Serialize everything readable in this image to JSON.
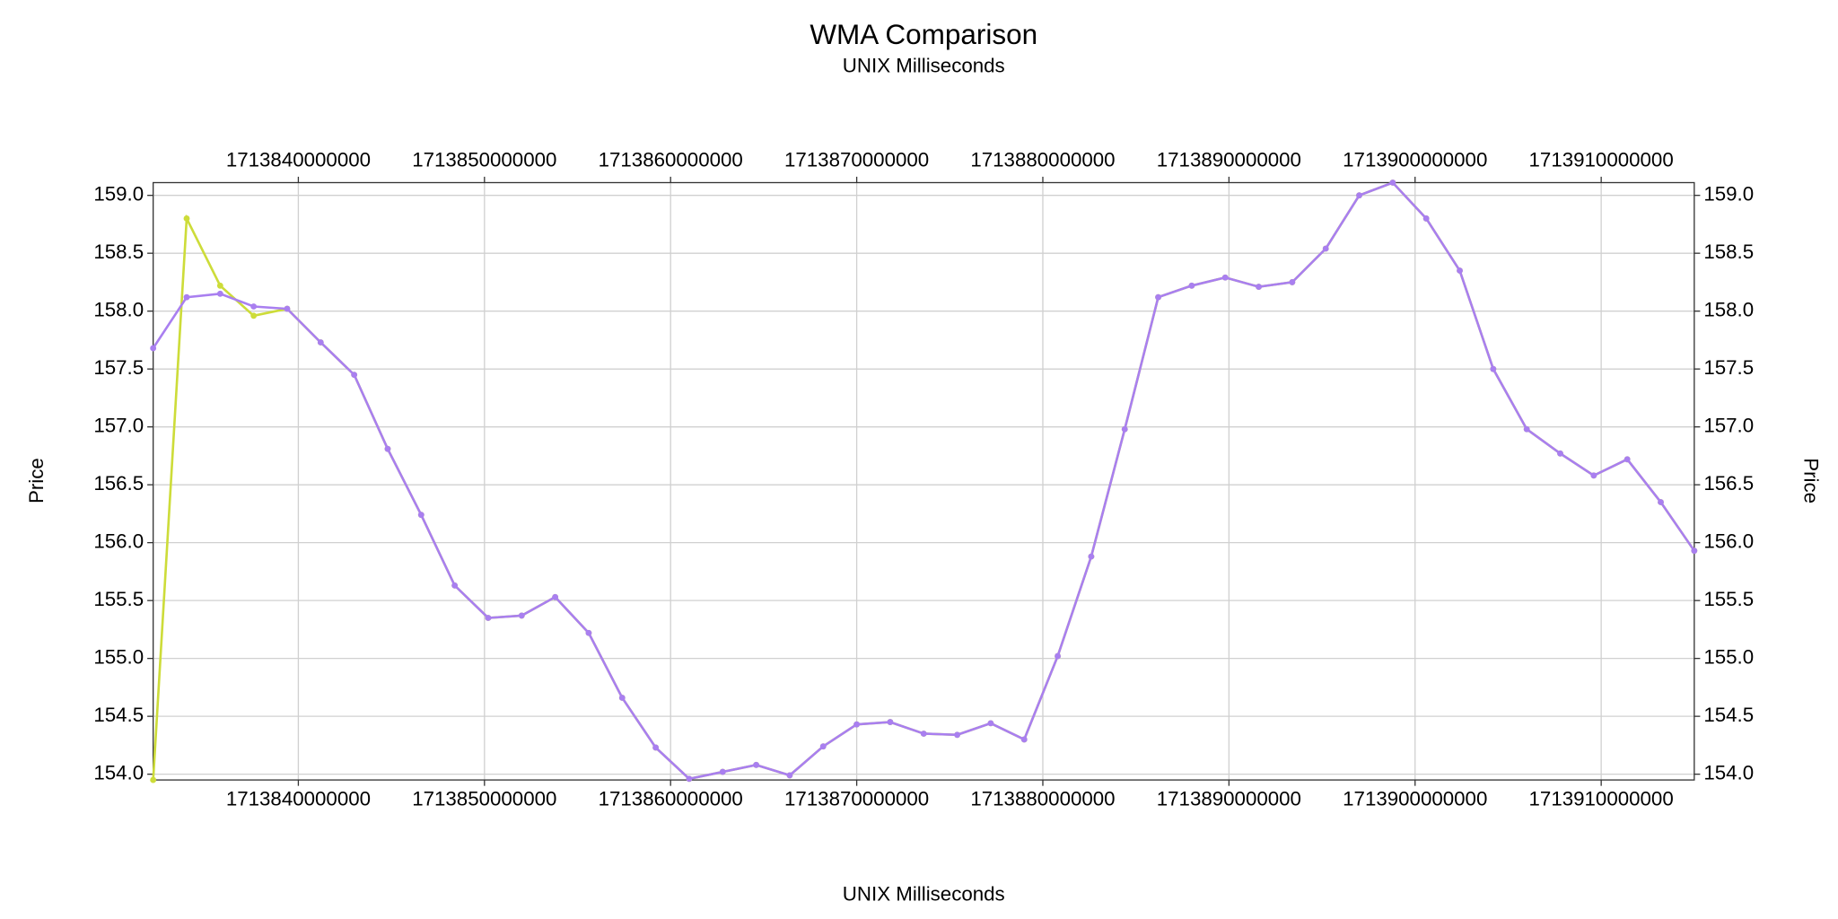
{
  "chart_data": {
    "type": "line",
    "title": "WMA Comparison",
    "subtitle": "UNIX Milliseconds",
    "xlabel": "UNIX Milliseconds",
    "ylabel": "Price",
    "y2label": "Price",
    "x": [
      1713832200000,
      1713834000000,
      1713835800000,
      1713837600000,
      1713839400000,
      1713841200000,
      1713843000000,
      1713844800000,
      1713846600000,
      1713848400000,
      1713850200000,
      1713852000000,
      1713853800000,
      1713855600000,
      1713857400000,
      1713859200000,
      1713861000000,
      1713862800000,
      1713864600000,
      1713866400000,
      1713868200000,
      1713870000000,
      1713871800000,
      1713873600000,
      1713875400000,
      1713877200000,
      1713879000000,
      1713880800000,
      1713882600000,
      1713884400000,
      1713886200000,
      1713888000000,
      1713889800000,
      1713891600000,
      1713893400000,
      1713895200000,
      1713897000000,
      1713898800000,
      1713900600000,
      1713902400000,
      1713904200000,
      1713906000000,
      1713907800000,
      1713909600000,
      1713911400000,
      1713913200000,
      1713915000000
    ],
    "series": [
      {
        "color": "#cddc39",
        "values": [
          153.95,
          158.8,
          158.22,
          157.96,
          158.02,
          157.73,
          157.45,
          156.81,
          156.24,
          155.63,
          155.35,
          155.37,
          155.53,
          155.22,
          154.66,
          154.23,
          153.96,
          154.02,
          154.08,
          153.99,
          154.24,
          154.43,
          154.45,
          154.35,
          154.34,
          154.44,
          154.3,
          155.02,
          155.88,
          156.98,
          158.12,
          158.22,
          158.29,
          158.21,
          158.25,
          158.54,
          159.0,
          159.11,
          158.8,
          158.35,
          157.5,
          156.98,
          156.77,
          156.58,
          156.72,
          156.35,
          155.93
        ]
      },
      {
        "color": "#a97ff0",
        "values": [
          157.68,
          158.12,
          158.15,
          158.04,
          158.02,
          157.73,
          157.45,
          156.81,
          156.24,
          155.63,
          155.35,
          155.37,
          155.53,
          155.22,
          154.66,
          154.23,
          153.96,
          154.02,
          154.08,
          153.99,
          154.24,
          154.43,
          154.45,
          154.35,
          154.34,
          154.44,
          154.3,
          155.02,
          155.88,
          156.98,
          158.12,
          158.22,
          158.29,
          158.21,
          158.25,
          158.54,
          159.0,
          159.11,
          158.8,
          158.35,
          157.5,
          156.98,
          156.77,
          156.58,
          156.72,
          156.35,
          155.93
        ]
      }
    ],
    "xlim": [
      1713832200000,
      1713915000000
    ],
    "xticks": [
      1713840000000,
      1713850000000,
      1713860000000,
      1713870000000,
      1713880000000,
      1713890000000,
      1713900000000,
      1713910000000
    ],
    "ylim": [
      153.95,
      159.11
    ],
    "yticks": [
      {
        "value": 154,
        "label": "154.0"
      },
      {
        "value": 154.5,
        "label": "154.5"
      },
      {
        "value": 155,
        "label": "155.0"
      },
      {
        "value": 155.5,
        "label": "155.5"
      },
      {
        "value": 156,
        "label": "156.0"
      },
      {
        "value": 156.5,
        "label": "156.5"
      },
      {
        "value": 157,
        "label": "157.0"
      },
      {
        "value": 157.5,
        "label": "157.5"
      },
      {
        "value": 158,
        "label": "158.0"
      },
      {
        "value": 158.5,
        "label": "158.5"
      },
      {
        "value": 159,
        "label": "159.0"
      }
    ],
    "y2lim": [
      153.95,
      159.11
    ],
    "y2ticks": [
      {
        "value": 154,
        "label": "154.0"
      },
      {
        "value": 154.5,
        "label": "154.5"
      },
      {
        "value": 155,
        "label": "155.0"
      },
      {
        "value": 155.5,
        "label": "155.5"
      },
      {
        "value": 156,
        "label": "156.0"
      },
      {
        "value": 156.5,
        "label": "156.5"
      },
      {
        "value": 157,
        "label": "157.0"
      },
      {
        "value": 157.5,
        "label": "157.5"
      },
      {
        "value": 158,
        "label": "158.0"
      },
      {
        "value": 158.5,
        "label": "158.5"
      },
      {
        "value": 159,
        "label": "159.0"
      }
    ],
    "grid": true
  }
}
